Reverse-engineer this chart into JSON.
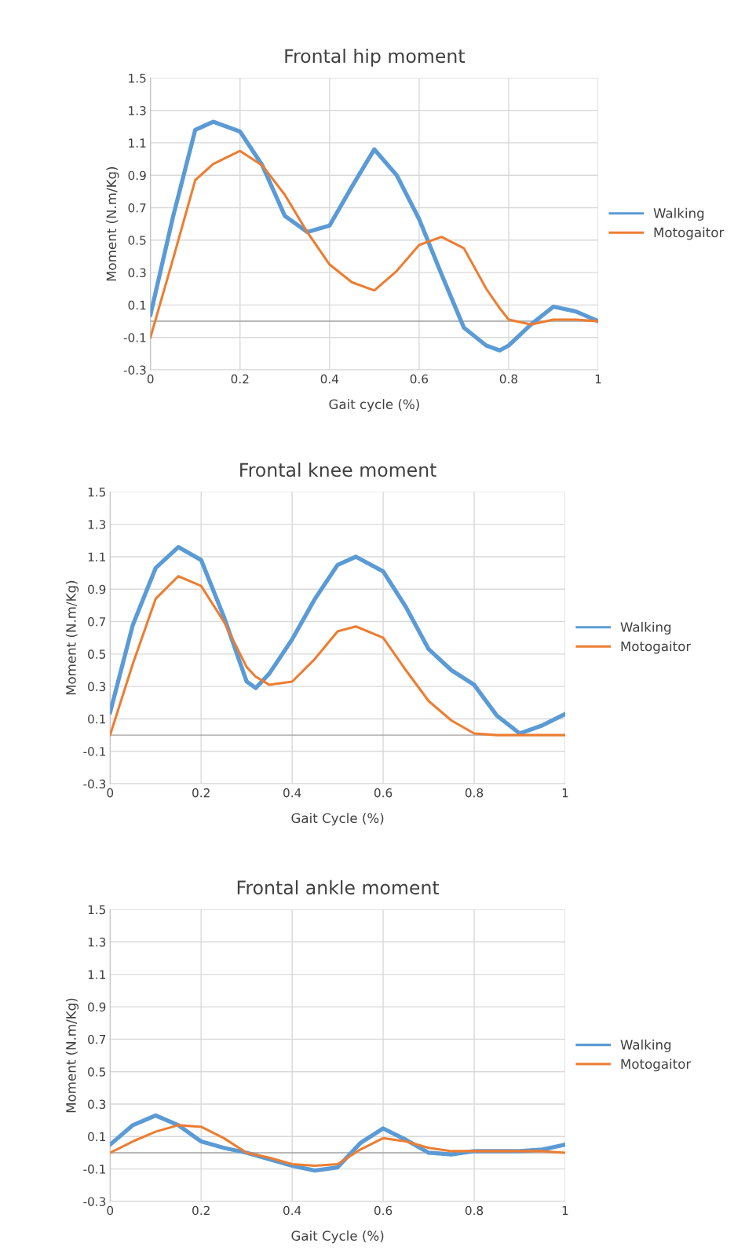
{
  "chart_data": [
    {
      "type": "line",
      "title": "Frontal hip moment",
      "xlabel": "Gait cycle (%)",
      "ylabel": "Moment (N.m/Kg)",
      "x": [
        0,
        0.05,
        0.1,
        0.14,
        0.2,
        0.25,
        0.3,
        0.35,
        0.4,
        0.45,
        0.5,
        0.55,
        0.6,
        0.65,
        0.7,
        0.75,
        0.78,
        0.8,
        0.85,
        0.9,
        0.95,
        1
      ],
      "series": [
        {
          "name": "Walking",
          "color": "#5b9bd5",
          "values": [
            0.04,
            0.64,
            1.18,
            1.23,
            1.17,
            0.96,
            0.65,
            0.55,
            0.59,
            0.83,
            1.06,
            0.9,
            0.63,
            0.29,
            -0.04,
            -0.15,
            -0.18,
            -0.15,
            -0.02,
            0.09,
            0.06,
            0.0
          ]
        },
        {
          "name": "Motogaitor",
          "color": "#ed7d31",
          "values": [
            -0.1,
            0.38,
            0.87,
            0.97,
            1.05,
            0.96,
            0.78,
            0.55,
            0.35,
            0.24,
            0.19,
            0.31,
            0.47,
            0.52,
            0.45,
            0.2,
            0.08,
            0.01,
            -0.02,
            0.01,
            0.01,
            0.0
          ]
        }
      ],
      "xlim": [
        0,
        1
      ],
      "ylim": [
        -0.3,
        1.5
      ],
      "xticks": [
        0,
        0.2,
        0.4,
        0.6,
        0.8,
        1
      ],
      "yticks": [
        -0.3,
        -0.1,
        0.1,
        0.3,
        0.5,
        0.7,
        0.9,
        1.1,
        1.3,
        1.5
      ],
      "grid": true,
      "legend": "right",
      "marker": "none",
      "line_style": "solid"
    },
    {
      "type": "line",
      "title": "Frontal knee moment",
      "xlabel": "Gait Cycle (%)",
      "ylabel": "Moment (N.m/Kg)",
      "x": [
        0,
        0.05,
        0.1,
        0.15,
        0.2,
        0.25,
        0.3,
        0.32,
        0.35,
        0.4,
        0.45,
        0.5,
        0.54,
        0.6,
        0.65,
        0.7,
        0.75,
        0.8,
        0.85,
        0.9,
        0.95,
        1
      ],
      "series": [
        {
          "name": "Walking",
          "color": "#5b9bd5",
          "values": [
            0.14,
            0.68,
            1.03,
            1.16,
            1.08,
            0.73,
            0.33,
            0.29,
            0.38,
            0.59,
            0.84,
            1.05,
            1.1,
            1.01,
            0.79,
            0.53,
            0.4,
            0.31,
            0.12,
            0.01,
            0.06,
            0.13
          ]
        },
        {
          "name": "Motogaitor",
          "color": "#ed7d31",
          "values": [
            0.0,
            0.44,
            0.84,
            0.98,
            0.92,
            0.7,
            0.42,
            0.36,
            0.31,
            0.33,
            0.47,
            0.64,
            0.67,
            0.6,
            0.4,
            0.21,
            0.09,
            0.01,
            0.0,
            0.0,
            0.0,
            0.0
          ]
        }
      ],
      "xlim": [
        0,
        1
      ],
      "ylim": [
        -0.3,
        1.5
      ],
      "xticks": [
        0,
        0.2,
        0.4,
        0.6,
        0.8,
        1
      ],
      "yticks": [
        -0.3,
        -0.1,
        0.1,
        0.3,
        0.5,
        0.7,
        0.9,
        1.1,
        1.3,
        1.5
      ],
      "grid": true,
      "legend": "right",
      "marker": "none",
      "line_style": "solid"
    },
    {
      "type": "line",
      "title": "Frontal ankle moment",
      "xlabel": "Gait Cycle (%)",
      "ylabel": "Moment (N.m/Kg)",
      "x": [
        0,
        0.05,
        0.1,
        0.15,
        0.2,
        0.25,
        0.3,
        0.35,
        0.4,
        0.45,
        0.5,
        0.55,
        0.6,
        0.65,
        0.7,
        0.75,
        0.8,
        0.85,
        0.9,
        0.95,
        1
      ],
      "series": [
        {
          "name": "Walking",
          "color": "#5b9bd5",
          "values": [
            0.05,
            0.17,
            0.23,
            0.17,
            0.07,
            0.03,
            0.0,
            -0.04,
            -0.08,
            -0.11,
            -0.09,
            0.06,
            0.15,
            0.08,
            0.0,
            -0.01,
            0.01,
            0.01,
            0.01,
            0.02,
            0.05
          ]
        },
        {
          "name": "Motogaitor",
          "color": "#ed7d31",
          "values": [
            0.0,
            0.07,
            0.13,
            0.17,
            0.16,
            0.09,
            0.0,
            -0.03,
            -0.07,
            -0.08,
            -0.07,
            0.02,
            0.09,
            0.07,
            0.03,
            0.01,
            0.01,
            0.01,
            0.01,
            0.01,
            0.0
          ]
        }
      ],
      "xlim": [
        0,
        1
      ],
      "ylim": [
        -0.3,
        1.5
      ],
      "xticks": [
        0,
        0.2,
        0.4,
        0.6,
        0.8,
        1
      ],
      "yticks": [
        -0.3,
        -0.1,
        0.1,
        0.3,
        0.5,
        0.7,
        0.9,
        1.1,
        1.3,
        1.5
      ],
      "grid": true,
      "legend": "right",
      "marker": "none",
      "line_style": "solid"
    }
  ]
}
